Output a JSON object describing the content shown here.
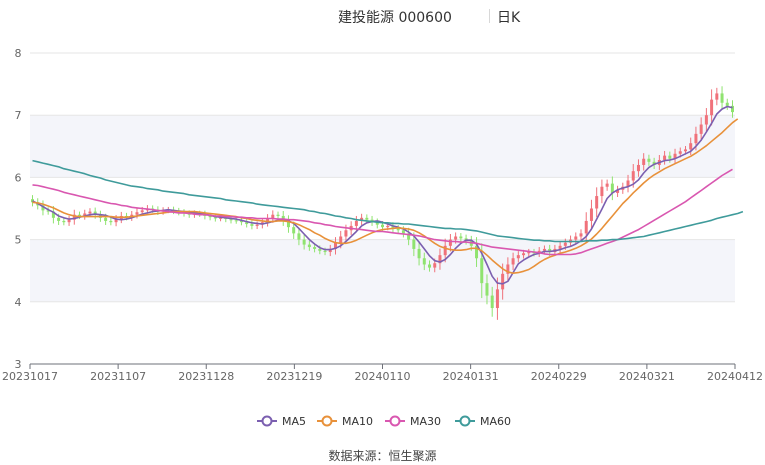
{
  "header": {
    "title": "建投能源 000600",
    "period": "日K"
  },
  "source_label": "数据来源：",
  "source_name": "恒生聚源",
  "chart_data": {
    "type": "candlestick",
    "title": "建投能源 000600",
    "period": "日K",
    "ylim": [
      3,
      8
    ],
    "y_ticks": [
      "3",
      "4",
      "5",
      "6",
      "7",
      "8"
    ],
    "x_ticks": [
      "20231017",
      "20231107",
      "20231128",
      "20231219",
      "20240110",
      "20240131",
      "20240229",
      "20240321",
      "20240412"
    ],
    "grid": true,
    "legend_position": "bottom",
    "colors": {
      "up": "#f0717a",
      "down": "#8fe36f"
    },
    "close": [
      5.6,
      5.55,
      5.47,
      5.45,
      5.35,
      5.3,
      5.28,
      5.32,
      5.4,
      5.38,
      5.42,
      5.45,
      5.4,
      5.35,
      5.3,
      5.28,
      5.33,
      5.38,
      5.36,
      5.4,
      5.44,
      5.47,
      5.5,
      5.48,
      5.45,
      5.47,
      5.48,
      5.46,
      5.44,
      5.42,
      5.4,
      5.42,
      5.41,
      5.38,
      5.36,
      5.34,
      5.35,
      5.33,
      5.31,
      5.3,
      5.28,
      5.25,
      5.22,
      5.24,
      5.28,
      5.34,
      5.4,
      5.38,
      5.3,
      5.2,
      5.1,
      5.0,
      4.92,
      4.88,
      4.85,
      4.82,
      4.8,
      4.85,
      4.95,
      5.05,
      5.15,
      5.22,
      5.3,
      5.35,
      5.32,
      5.28,
      5.24,
      5.2,
      5.22,
      5.18,
      5.15,
      5.1,
      5.0,
      4.85,
      4.7,
      4.6,
      4.55,
      4.62,
      4.75,
      4.9,
      5.0,
      5.05,
      5.02,
      4.98,
      4.9,
      4.7,
      4.3,
      4.1,
      3.9,
      4.2,
      4.45,
      4.6,
      4.7,
      4.75,
      4.78,
      4.8,
      4.78,
      4.82,
      4.85,
      4.8,
      4.85,
      4.9,
      4.95,
      5.0,
      5.05,
      5.1,
      5.3,
      5.5,
      5.7,
      5.85,
      5.9,
      5.75,
      5.8,
      5.85,
      5.95,
      6.1,
      6.2,
      6.3,
      6.25,
      6.2,
      6.28,
      6.35,
      6.3,
      6.38,
      6.42,
      6.45,
      6.55,
      6.7,
      6.85,
      7.0,
      7.25,
      7.35,
      7.2,
      7.15,
      7.05
    ],
    "MA5": [
      5.62,
      5.58,
      5.53,
      5.48,
      5.44,
      5.38,
      5.35,
      5.33,
      5.34,
      5.36,
      5.38,
      5.4,
      5.41,
      5.4,
      5.39,
      5.36,
      5.33,
      5.32,
      5.33,
      5.35,
      5.38,
      5.41,
      5.43,
      5.45,
      5.46,
      5.47,
      5.48,
      5.47,
      5.46,
      5.45,
      5.44,
      5.43,
      5.42,
      5.41,
      5.39,
      5.37,
      5.36,
      5.35,
      5.34,
      5.33,
      5.31,
      5.29,
      5.27,
      5.26,
      5.25,
      5.27,
      5.29,
      5.31,
      5.32,
      5.3,
      5.26,
      5.18,
      5.09,
      5.0,
      4.93,
      4.87,
      4.84,
      4.84,
      4.86,
      4.9,
      4.97,
      5.05,
      5.13,
      5.22,
      5.27,
      5.29,
      5.3,
      5.28,
      5.25,
      5.22,
      5.2,
      5.17,
      5.12,
      5.06,
      4.96,
      4.85,
      4.74,
      4.66,
      4.64,
      4.68,
      4.76,
      4.86,
      4.94,
      4.99,
      4.99,
      4.93,
      4.78,
      4.6,
      4.41,
      4.3,
      4.29,
      4.33,
      4.47,
      4.61,
      4.67,
      4.72,
      4.76,
      4.78,
      4.81,
      4.81,
      4.82,
      4.84,
      4.87,
      4.89,
      4.93,
      4.98,
      5.05,
      5.17,
      5.33,
      5.49,
      5.66,
      5.75,
      5.8,
      5.83,
      5.85,
      5.89,
      5.96,
      6.07,
      6.16,
      6.21,
      6.24,
      6.27,
      6.28,
      6.3,
      6.34,
      6.38,
      6.42,
      6.5,
      6.6,
      6.73,
      6.87,
      7.02,
      7.1,
      7.14,
      7.12
    ],
    "MA10": [
      5.6,
      5.59,
      5.57,
      5.54,
      5.51,
      5.47,
      5.43,
      5.4,
      5.38,
      5.37,
      5.37,
      5.37,
      5.37,
      5.37,
      5.37,
      5.37,
      5.36,
      5.36,
      5.36,
      5.37,
      5.38,
      5.39,
      5.4,
      5.41,
      5.42,
      5.43,
      5.44,
      5.45,
      5.45,
      5.45,
      5.45,
      5.45,
      5.44,
      5.43,
      5.42,
      5.41,
      5.4,
      5.39,
      5.38,
      5.37,
      5.35,
      5.34,
      5.32,
      5.31,
      5.3,
      5.29,
      5.29,
      5.3,
      5.3,
      5.29,
      5.27,
      5.24,
      5.2,
      5.16,
      5.11,
      5.07,
      5.02,
      4.98,
      4.95,
      4.94,
      4.94,
      4.96,
      4.99,
      5.03,
      5.07,
      5.11,
      5.14,
      5.16,
      5.17,
      5.18,
      5.19,
      5.18,
      5.17,
      5.15,
      5.11,
      5.06,
      5.0,
      4.94,
      4.89,
      4.86,
      4.84,
      4.83,
      4.83,
      4.84,
      4.86,
      4.86,
      4.82,
      4.75,
      4.67,
      4.6,
      4.53,
      4.48,
      4.46,
      4.47,
      4.49,
      4.52,
      4.57,
      4.63,
      4.68,
      4.72,
      4.75,
      4.78,
      4.8,
      4.83,
      4.86,
      4.9,
      4.95,
      5.01,
      5.09,
      5.18,
      5.28,
      5.38,
      5.48,
      5.58,
      5.66,
      5.75,
      5.83,
      5.91,
      5.98,
      6.04,
      6.09,
      6.14,
      6.18,
      6.22,
      6.26,
      6.3,
      6.34,
      6.39,
      6.45,
      6.51,
      6.58,
      6.65,
      6.72,
      6.8,
      6.88,
      6.94
    ],
    "MA30": [
      5.88,
      5.87,
      5.85,
      5.83,
      5.81,
      5.79,
      5.76,
      5.74,
      5.72,
      5.7,
      5.68,
      5.66,
      5.64,
      5.62,
      5.6,
      5.58,
      5.57,
      5.55,
      5.54,
      5.52,
      5.51,
      5.5,
      5.49,
      5.48,
      5.47,
      5.46,
      5.45,
      5.44,
      5.43,
      5.43,
      5.42,
      5.41,
      5.4,
      5.4,
      5.39,
      5.38,
      5.38,
      5.37,
      5.37,
      5.36,
      5.36,
      5.35,
      5.35,
      5.34,
      5.34,
      5.34,
      5.34,
      5.33,
      5.33,
      5.32,
      5.32,
      5.31,
      5.3,
      5.29,
      5.27,
      5.26,
      5.24,
      5.23,
      5.21,
      5.2,
      5.19,
      5.18,
      5.17,
      5.16,
      5.15,
      5.14,
      5.13,
      5.13,
      5.12,
      5.11,
      5.1,
      5.09,
      5.08,
      5.07,
      5.06,
      5.04,
      5.02,
      5.0,
      4.99,
      4.98,
      4.97,
      4.97,
      4.96,
      4.96,
      4.95,
      4.94,
      4.92,
      4.9,
      4.88,
      4.87,
      4.86,
      4.85,
      4.84,
      4.83,
      4.82,
      4.81,
      4.8,
      4.79,
      4.77,
      4.76,
      4.76,
      4.76,
      4.76,
      4.76,
      4.77,
      4.79,
      4.82,
      4.85,
      4.88,
      4.91,
      4.94,
      4.97,
      5.0,
      5.04,
      5.08,
      5.12,
      5.16,
      5.21,
      5.26,
      5.31,
      5.36,
      5.41,
      5.46,
      5.51,
      5.56,
      5.61,
      5.67,
      5.73,
      5.79,
      5.85,
      5.91,
      5.97,
      6.03,
      6.08,
      6.13
    ],
    "MA60": [
      6.27,
      6.25,
      6.23,
      6.21,
      6.19,
      6.17,
      6.14,
      6.12,
      6.1,
      6.08,
      6.06,
      6.03,
      6.01,
      5.99,
      5.96,
      5.94,
      5.92,
      5.9,
      5.88,
      5.86,
      5.85,
      5.84,
      5.82,
      5.81,
      5.8,
      5.78,
      5.77,
      5.76,
      5.75,
      5.74,
      5.72,
      5.71,
      5.7,
      5.69,
      5.68,
      5.67,
      5.66,
      5.64,
      5.63,
      5.62,
      5.61,
      5.6,
      5.59,
      5.57,
      5.56,
      5.55,
      5.54,
      5.53,
      5.52,
      5.51,
      5.5,
      5.49,
      5.48,
      5.46,
      5.45,
      5.43,
      5.42,
      5.4,
      5.38,
      5.37,
      5.35,
      5.34,
      5.32,
      5.31,
      5.3,
      5.29,
      5.28,
      5.27,
      5.27,
      5.26,
      5.26,
      5.25,
      5.25,
      5.24,
      5.23,
      5.22,
      5.21,
      5.2,
      5.19,
      5.18,
      5.18,
      5.17,
      5.17,
      5.16,
      5.15,
      5.14,
      5.12,
      5.1,
      5.08,
      5.06,
      5.05,
      5.04,
      5.03,
      5.02,
      5.01,
      5.0,
      4.99,
      4.99,
      4.98,
      4.98,
      4.97,
      4.97,
      4.97,
      4.97,
      4.97,
      4.97,
      4.98,
      4.98,
      4.98,
      4.99,
      4.99,
      5.0,
      5.0,
      5.01,
      5.02,
      5.03,
      5.04,
      5.05,
      5.07,
      5.09,
      5.11,
      5.13,
      5.15,
      5.17,
      5.19,
      5.21,
      5.23,
      5.25,
      5.27,
      5.29,
      5.31,
      5.34,
      5.36,
      5.38,
      5.4,
      5.42,
      5.45
    ],
    "series": [
      {
        "name": "MA5",
        "color": "#7b5fb0"
      },
      {
        "name": "MA10",
        "color": "#e8913a"
      },
      {
        "name": "MA30",
        "color": "#d957b0"
      },
      {
        "name": "MA60",
        "color": "#3f9b9b"
      }
    ]
  }
}
